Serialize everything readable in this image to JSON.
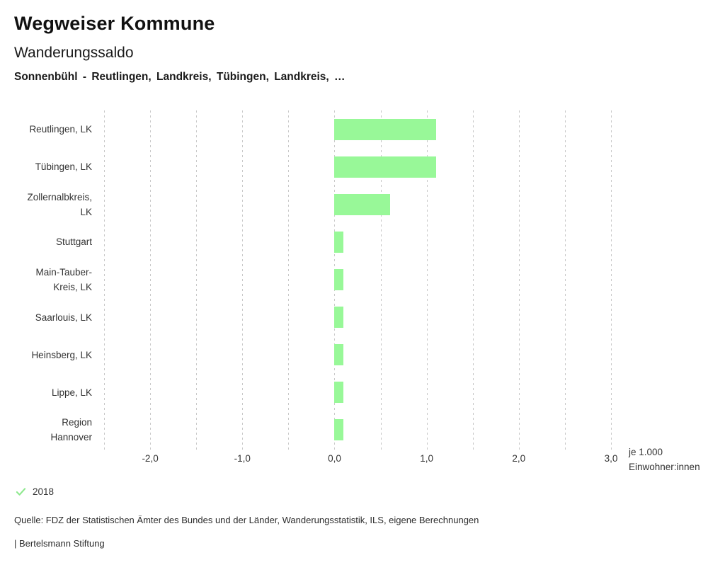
{
  "header": {
    "title": "Wegweiser Kommune",
    "subtitle": "Wanderungssaldo",
    "comparison": "Sonnenbühl - Reutlingen, Landkreis, Tübingen, Landkreis, …"
  },
  "chart_data": {
    "type": "bar",
    "orientation": "horizontal",
    "title": "Wanderungssaldo",
    "categories": [
      "Reutlingen, LK",
      "Tübingen, LK",
      "Zollernalbkreis, LK",
      "Stuttgart",
      "Main-Tauber-Kreis, LK",
      "Saarlouis, LK",
      "Heinsberg, LK",
      "Lippe, LK",
      "Region Hannover"
    ],
    "category_lines": [
      [
        "Reutlingen, LK"
      ],
      [
        "Tübingen, LK"
      ],
      [
        "Zollernalbkreis,",
        "LK"
      ],
      [
        "Stuttgart"
      ],
      [
        "Main-Tauber-",
        "Kreis, LK"
      ],
      [
        "Saarlouis, LK"
      ],
      [
        "Heinsberg, LK"
      ],
      [
        "Lippe, LK"
      ],
      [
        "Region",
        "Hannover"
      ]
    ],
    "series": [
      {
        "name": "2018",
        "values": [
          1.1,
          1.1,
          0.6,
          0.1,
          0.1,
          0.1,
          0.1,
          0.1,
          0.1
        ]
      }
    ],
    "xlabel": "je 1.000 Einwohner:innen",
    "xlabel_lines": [
      "je 1.000",
      "Einwohner:innen"
    ],
    "xlim": [
      -2.5,
      3.0
    ],
    "grid_step": 0.5,
    "x_ticks": [
      -2,
      -1,
      0,
      1,
      2,
      3
    ],
    "x_tick_labels": [
      "-2,0",
      "-1,0",
      "0,0",
      "1,0",
      "2,0",
      "3,0"
    ],
    "grid": true,
    "legend_position": "bottom-left",
    "bar_color": "#98f898"
  },
  "legend": {
    "year": "2018",
    "check_color": "#8ce88c"
  },
  "footer": {
    "source": "Quelle: FDZ der Statistischen Ämter des Bundes und der Länder, Wanderungsstatistik, ILS, eigene Berechnungen",
    "attribution": "| Bertelsmann Stiftung"
  },
  "colors": {
    "bar": "#98f898",
    "grid": "#c8c8c8"
  }
}
